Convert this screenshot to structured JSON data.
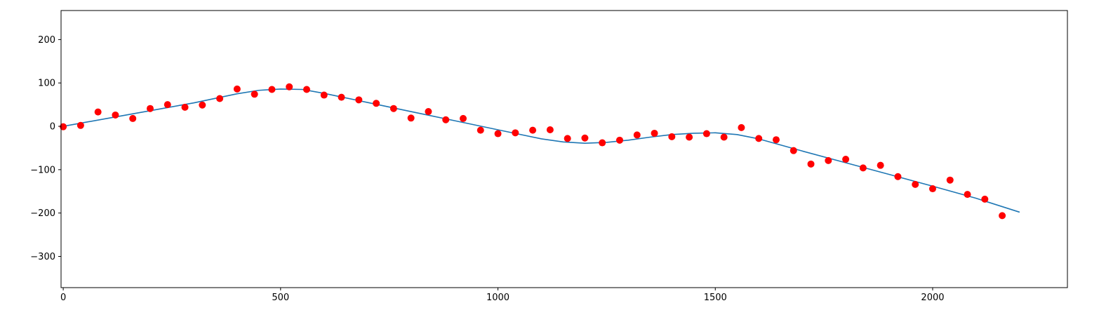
{
  "chart_data": {
    "type": "scatter",
    "title": "",
    "xlabel": "",
    "ylabel": "",
    "xlim": [
      -5,
      2310
    ],
    "ylim": [
      -372,
      267
    ],
    "x_ticks": [
      0,
      500,
      1000,
      1500,
      2000
    ],
    "x_tick_labels": [
      "0",
      "500",
      "1000",
      "1500",
      "2000"
    ],
    "y_ticks": [
      200,
      100,
      0,
      -100,
      -200,
      -300
    ],
    "y_tick_labels": [
      "200",
      "100",
      "0",
      "−100",
      "−200",
      "−300"
    ],
    "grid": false,
    "series": [
      {
        "kind": "scatter",
        "color": "#ff0000",
        "points": [
          [
            0,
            -1
          ],
          [
            40,
            2
          ],
          [
            80,
            33
          ],
          [
            120,
            26
          ],
          [
            160,
            18
          ],
          [
            200,
            41
          ],
          [
            240,
            50
          ],
          [
            280,
            44
          ],
          [
            320,
            49
          ],
          [
            360,
            64
          ],
          [
            400,
            86
          ],
          [
            440,
            74
          ],
          [
            480,
            85
          ],
          [
            520,
            91
          ],
          [
            560,
            85
          ],
          [
            600,
            72
          ],
          [
            640,
            67
          ],
          [
            680,
            61
          ],
          [
            720,
            53
          ],
          [
            760,
            41
          ],
          [
            800,
            19
          ],
          [
            840,
            34
          ],
          [
            880,
            15
          ],
          [
            920,
            18
          ],
          [
            960,
            -9
          ],
          [
            1000,
            -17
          ],
          [
            1040,
            -15
          ],
          [
            1080,
            -9
          ],
          [
            1120,
            -8
          ],
          [
            1160,
            -28
          ],
          [
            1200,
            -27
          ],
          [
            1240,
            -38
          ],
          [
            1280,
            -32
          ],
          [
            1320,
            -20
          ],
          [
            1360,
            -16
          ],
          [
            1400,
            -24
          ],
          [
            1440,
            -25
          ],
          [
            1480,
            -17
          ],
          [
            1520,
            -25
          ],
          [
            1560,
            -3
          ],
          [
            1600,
            -28
          ],
          [
            1640,
            -31
          ],
          [
            1680,
            -56
          ],
          [
            1720,
            -87
          ],
          [
            1760,
            -79
          ],
          [
            1800,
            -76
          ],
          [
            1840,
            -96
          ],
          [
            1880,
            -90
          ],
          [
            1920,
            -116
          ],
          [
            1960,
            -134
          ],
          [
            2000,
            -144
          ],
          [
            2040,
            -124
          ],
          [
            2080,
            -157
          ],
          [
            2120,
            -168
          ],
          [
            2160,
            -206
          ]
        ]
      },
      {
        "kind": "line",
        "color": "#1f77b4",
        "points": [
          [
            0,
            0
          ],
          [
            100,
            18
          ],
          [
            200,
            36
          ],
          [
            300,
            54
          ],
          [
            400,
            75
          ],
          [
            450,
            83
          ],
          [
            500,
            86
          ],
          [
            550,
            85
          ],
          [
            600,
            76
          ],
          [
            700,
            55
          ],
          [
            800,
            34
          ],
          [
            900,
            13
          ],
          [
            1000,
            -8
          ],
          [
            1100,
            -29
          ],
          [
            1150,
            -36
          ],
          [
            1200,
            -39
          ],
          [
            1250,
            -37
          ],
          [
            1300,
            -32
          ],
          [
            1350,
            -25
          ],
          [
            1400,
            -19
          ],
          [
            1450,
            -16
          ],
          [
            1500,
            -15
          ],
          [
            1550,
            -19
          ],
          [
            1600,
            -29
          ],
          [
            1700,
            -57
          ],
          [
            1800,
            -84
          ],
          [
            1900,
            -111
          ],
          [
            2000,
            -138
          ],
          [
            2100,
            -166
          ],
          [
            2200,
            -198
          ]
        ]
      }
    ]
  }
}
